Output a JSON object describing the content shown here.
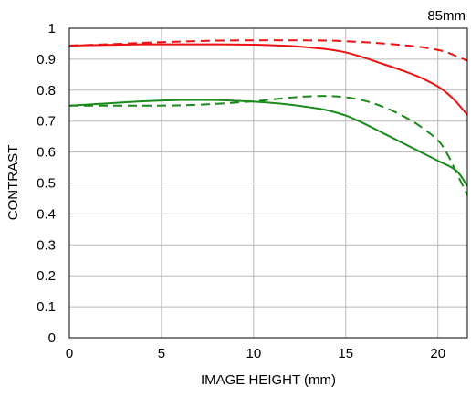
{
  "chart_data": {
    "type": "line",
    "title": "85mm",
    "xlabel": "IMAGE HEIGHT (mm)",
    "ylabel": "CONTRAST",
    "xlim": [
      0,
      21.6
    ],
    "ylim": [
      0,
      1
    ],
    "xticks": [
      0,
      5,
      10,
      15,
      20
    ],
    "xtick_labels": [
      "0",
      "5",
      "10",
      "15",
      "20"
    ],
    "yticks": [
      0,
      0.1,
      0.2,
      0.3,
      0.4,
      0.5,
      0.6,
      0.7,
      0.8,
      0.9,
      1
    ],
    "ytick_labels": [
      "0",
      "0.1",
      "0.2",
      "0.3",
      "0.4",
      "0.5",
      "0.6",
      "0.7",
      "0.8",
      "0.9",
      "1"
    ],
    "grid": true,
    "legend": false,
    "series": [
      {
        "color": "#ee1111",
        "dash": "solid",
        "x": [
          0,
          2,
          4,
          6,
          8,
          10,
          11,
          12,
          13,
          14,
          15,
          16,
          17,
          18,
          19,
          20,
          20.5,
          21,
          21.6
        ],
        "y": [
          0.944,
          0.946,
          0.948,
          0.948,
          0.948,
          0.947,
          0.945,
          0.943,
          0.938,
          0.932,
          0.922,
          0.905,
          0.885,
          0.865,
          0.842,
          0.812,
          0.79,
          0.762,
          0.72
        ]
      },
      {
        "color": "#ee1111",
        "dash": "dashed",
        "x": [
          0,
          2,
          4,
          6,
          8,
          10,
          12,
          14,
          15,
          16,
          17,
          18,
          19,
          20,
          20.5,
          21,
          21.6
        ],
        "y": [
          0.944,
          0.948,
          0.953,
          0.957,
          0.96,
          0.961,
          0.961,
          0.96,
          0.958,
          0.955,
          0.951,
          0.946,
          0.94,
          0.93,
          0.922,
          0.91,
          0.895
        ]
      },
      {
        "color": "#1a8a1a",
        "dash": "solid",
        "x": [
          0,
          2,
          4,
          6,
          8,
          10,
          11,
          12,
          13,
          14,
          15,
          16,
          17,
          18,
          19,
          20,
          21,
          21.6
        ],
        "y": [
          0.75,
          0.757,
          0.764,
          0.768,
          0.768,
          0.763,
          0.759,
          0.753,
          0.745,
          0.735,
          0.718,
          0.692,
          0.662,
          0.632,
          0.602,
          0.572,
          0.54,
          0.49
        ]
      },
      {
        "color": "#1a8a1a",
        "dash": "dashed",
        "x": [
          0,
          2,
          4,
          6,
          8,
          10,
          11,
          12,
          13,
          14,
          15,
          16,
          17,
          18,
          19,
          20,
          20.5,
          21,
          21.6
        ],
        "y": [
          0.75,
          0.75,
          0.75,
          0.751,
          0.756,
          0.764,
          0.77,
          0.776,
          0.78,
          0.781,
          0.777,
          0.766,
          0.747,
          0.72,
          0.685,
          0.638,
          0.595,
          0.535,
          0.46
        ]
      }
    ]
  }
}
